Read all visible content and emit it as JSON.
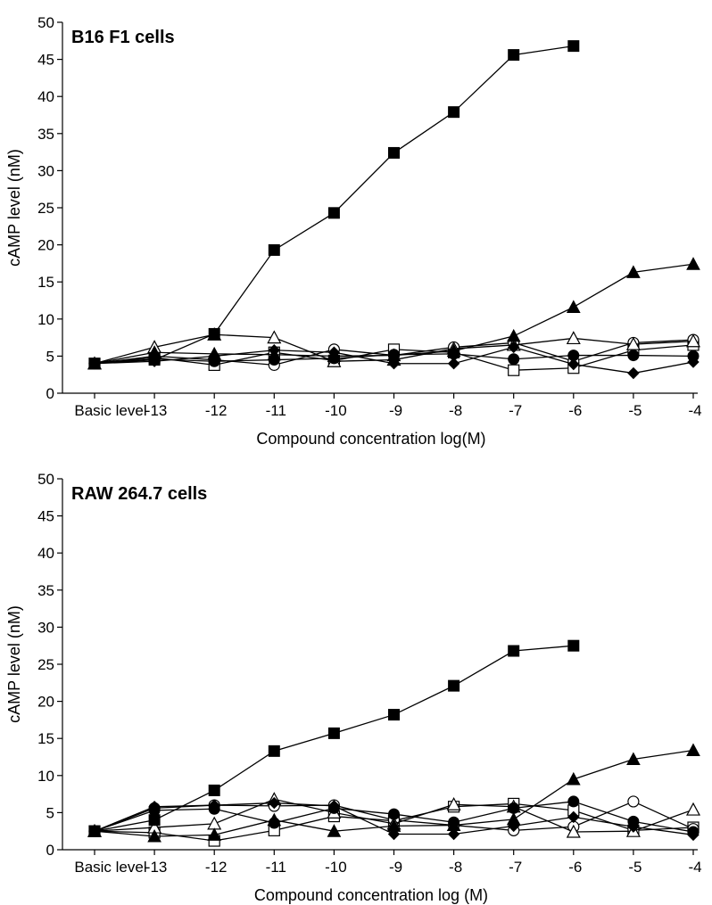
{
  "chart_data": [
    {
      "type": "line",
      "title": "B16 F1 cells",
      "xlabel": "Compound concentration log(M)",
      "ylabel": "cAMP level (nM)",
      "ylim": [
        0,
        50
      ],
      "y_ticks": [
        "0",
        "5",
        "10",
        "15",
        "20",
        "25",
        "30",
        "35",
        "40",
        "45",
        "50"
      ],
      "categories": [
        "Basic level",
        "-13",
        "-12",
        "-11",
        "-10",
        "-9",
        "-8",
        "-7",
        "-6",
        "-5",
        "-4"
      ],
      "grid": false,
      "legend": "none",
      "series": [
        {
          "marker": "filled-square",
          "values": [
            4.0,
            4.5,
            8.0,
            19.3,
            24.3,
            32.4,
            37.9,
            45.6,
            46.8,
            null,
            null
          ]
        },
        {
          "marker": "filled-triangle",
          "values": [
            4.0,
            5.5,
            5.3,
            5.2,
            5.0,
            5.1,
            5.7,
            7.7,
            11.6,
            16.3,
            17.4
          ]
        },
        {
          "marker": "filled-circle",
          "values": [
            4.0,
            4.6,
            4.3,
            4.5,
            4.7,
            5.2,
            5.3,
            4.6,
            5.1,
            5.1,
            5.0
          ]
        },
        {
          "marker": "filled-diamond",
          "values": [
            4.0,
            4.3,
            5.0,
            5.8,
            5.5,
            4.0,
            4.0,
            6.2,
            3.9,
            2.7,
            4.2
          ]
        },
        {
          "marker": "open-triangle",
          "values": [
            4.0,
            6.2,
            7.9,
            7.5,
            4.3,
            4.5,
            6.0,
            6.5,
            7.4,
            6.6,
            7.0
          ]
        },
        {
          "marker": "open-circle",
          "values": [
            4.0,
            5.0,
            4.5,
            3.8,
            5.9,
            5.1,
            6.2,
            6.8,
            4.3,
            6.8,
            7.2
          ]
        },
        {
          "marker": "open-square",
          "values": [
            4.0,
            4.8,
            3.8,
            5.5,
            4.4,
            5.9,
            5.5,
            3.1,
            3.4,
            5.8,
            6.5
          ]
        }
      ]
    },
    {
      "type": "line",
      "title": "RAW 264.7 cells",
      "xlabel": "Compound concentration log (M)",
      "ylabel": "cAMP level (nM)",
      "ylim": [
        0,
        50
      ],
      "y_ticks": [
        "0",
        "5",
        "10",
        "15",
        "20",
        "25",
        "30",
        "35",
        "40",
        "45",
        "50"
      ],
      "categories": [
        "Basic level",
        "-13",
        "-12",
        "-11",
        "-10",
        "-9",
        "-8",
        "-7",
        "-6",
        "-5",
        "-4"
      ],
      "grid": false,
      "legend": "none",
      "series": [
        {
          "marker": "filled-square",
          "values": [
            2.5,
            4.0,
            8.0,
            13.3,
            15.7,
            18.2,
            22.1,
            26.8,
            27.5,
            null,
            null
          ]
        },
        {
          "marker": "filled-triangle",
          "values": [
            2.5,
            1.8,
            2.0,
            4.0,
            2.5,
            3.2,
            3.3,
            4.1,
            9.5,
            12.2,
            13.4
          ]
        },
        {
          "marker": "filled-circle",
          "values": [
            2.5,
            5.3,
            5.5,
            3.6,
            5.6,
            4.8,
            3.7,
            5.6,
            6.5,
            3.8,
            2.4
          ]
        },
        {
          "marker": "filled-diamond",
          "values": [
            2.5,
            5.8,
            6.0,
            6.3,
            5.9,
            2.1,
            2.1,
            3.2,
            4.4,
            3.1,
            2.0
          ]
        },
        {
          "marker": "open-triangle",
          "values": [
            2.5,
            3.0,
            3.5,
            6.8,
            5.0,
            3.5,
            6.1,
            5.8,
            2.4,
            2.5,
            5.4
          ]
        },
        {
          "marker": "open-circle",
          "values": [
            2.5,
            5.6,
            6.0,
            5.9,
            6.0,
            4.0,
            3.3,
            2.6,
            3.1,
            6.5,
            2.8
          ]
        },
        {
          "marker": "open-square",
          "values": [
            2.5,
            2.3,
            1.2,
            2.6,
            4.5,
            3.9,
            5.8,
            6.2,
            5.3,
            2.6,
            3.0
          ]
        }
      ]
    }
  ]
}
